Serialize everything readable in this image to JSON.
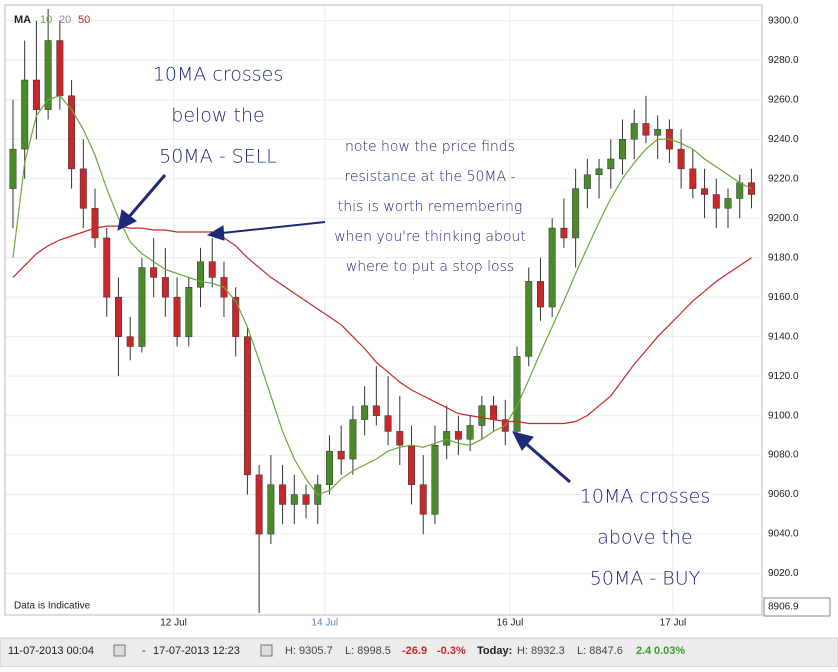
{
  "chart_data": {
    "type": "candlestick",
    "legend_title": "MA",
    "up_color": "#4a8a2a",
    "down_color": "#c8282a",
    "open": [
      9215,
      9235,
      9270,
      9255,
      9290,
      9262,
      9225,
      9205,
      9190,
      9160,
      9140,
      9135,
      9175,
      9170,
      9160,
      9140,
      9165,
      9178,
      9170,
      9160,
      9140,
      9070,
      9040,
      9065,
      9055,
      9060,
      9055,
      9065,
      9082,
      9078,
      9098,
      9105,
      9100,
      9092,
      9085,
      9065,
      9050,
      9085,
      9092,
      9088,
      9095,
      9105,
      9098,
      9092,
      9130,
      9168,
      9155,
      9195,
      9190,
      9215,
      9222,
      9225,
      9230,
      9240,
      9248,
      9242,
      9245,
      9235,
      9225,
      9215,
      9212,
      9205,
      9210,
      9218
    ],
    "high": [
      9260,
      9290,
      9300,
      9306,
      9300,
      9270,
      9240,
      9215,
      9195,
      9170,
      9150,
      9180,
      9190,
      9185,
      9170,
      9170,
      9185,
      9190,
      9178,
      9165,
      9145,
      9075,
      9080,
      9075,
      9070,
      9065,
      9070,
      9090,
      9095,
      9105,
      9115,
      9125,
      9120,
      9110,
      9095,
      9080,
      9095,
      9105,
      9100,
      9100,
      9110,
      9110,
      9108,
      9135,
      9175,
      9180,
      9200,
      9210,
      9225,
      9230,
      9230,
      9240,
      9250,
      9255,
      9262,
      9252,
      9250,
      9245,
      9235,
      9225,
      9220,
      9215,
      9222,
      9225
    ],
    "low": [
      9195,
      9220,
      9240,
      9250,
      9255,
      9215,
      9195,
      9185,
      9150,
      9120,
      9128,
      9132,
      9160,
      9150,
      9135,
      9135,
      9155,
      9165,
      9150,
      9130,
      9060,
      9000,
      9035,
      9045,
      9045,
      9048,
      9045,
      9060,
      9070,
      9070,
      9090,
      9095,
      9085,
      9075,
      9055,
      9040,
      9045,
      9078,
      9080,
      9082,
      9088,
      9092,
      9085,
      9088,
      9125,
      9148,
      9150,
      9185,
      9175,
      9205,
      9210,
      9215,
      9222,
      9230,
      9238,
      9230,
      9228,
      9215,
      9210,
      9200,
      9195,
      9195,
      9200,
      9205
    ],
    "close": [
      9235,
      9270,
      9255,
      9290,
      9262,
      9225,
      9205,
      9190,
      9160,
      9140,
      9135,
      9175,
      9170,
      9160,
      9140,
      9165,
      9178,
      9170,
      9160,
      9140,
      9070,
      9040,
      9065,
      9055,
      9060,
      9055,
      9065,
      9082,
      9078,
      9098,
      9105,
      9100,
      9092,
      9085,
      9065,
      9050,
      9085,
      9092,
      9088,
      9095,
      9105,
      9098,
      9092,
      9130,
      9168,
      9155,
      9195,
      9190,
      9215,
      9222,
      9225,
      9230,
      9240,
      9248,
      9242,
      9245,
      9235,
      9225,
      9215,
      9212,
      9205,
      9210,
      9218,
      9212
    ],
    "series": [
      {
        "name": "10",
        "color": "#6aa83a",
        "values": [
          9180,
          9228,
          9252,
          9260,
          9262,
          9255,
          9245,
          9232,
          9215,
          9200,
          9188,
          9182,
          9178,
          9174,
          9172,
          9170,
          9168,
          9167,
          9165,
          9158,
          9145,
          9128,
          9110,
          9092,
          9078,
          9068,
          9060,
          9062,
          9068,
          9072,
          9075,
          9078,
          9082,
          9084,
          9085,
          9084,
          9086,
          9088,
          9086,
          9085,
          9088,
          9092,
          9095,
          9105,
          9118,
          9132,
          9145,
          9158,
          9172,
          9185,
          9198,
          9210,
          9220,
          9228,
          9235,
          9240,
          9240,
          9238,
          9235,
          9230,
          9226,
          9222,
          9218,
          9215
        ]
      },
      {
        "name": "50",
        "color": "#c8282a",
        "values": [
          9170,
          9176,
          9182,
          9186,
          9189,
          9191,
          9193,
          9195,
          9196,
          9196,
          9195,
          9195,
          9194,
          9194,
          9193,
          9193,
          9193,
          9193,
          9190,
          9186,
          9180,
          9175,
          9170,
          9166,
          9162,
          9158,
          9154,
          9150,
          9146,
          9140,
          9134,
          9127,
          9122,
          9117,
          9113,
          9110,
          9107,
          9104,
          9101,
          9100,
          9099,
          9098,
          9097,
          9097,
          9096,
          9096,
          9096,
          9096,
          9097,
          9100,
          9105,
          9110,
          9118,
          9126,
          9133,
          9140,
          9146,
          9152,
          9158,
          9163,
          9168,
          9172,
          9176,
          9180
        ]
      }
    ],
    "hidden_series": {
      "name": "20",
      "color": "#8a8a8a"
    },
    "xlim": [
      -0.68,
      63.9
    ],
    "xticks": [
      {
        "value": 13.7,
        "label": "12 Jul"
      },
      {
        "value": 26.6,
        "label": "14 Jul"
      },
      {
        "value": 42.4,
        "label": "16 Jul"
      },
      {
        "value": 56.3,
        "label": "17 Jul"
      }
    ],
    "ylim": [
      8999,
      9308
    ],
    "yticks": [
      {
        "value": 9020,
        "label": "9020.0"
      },
      {
        "value": 9040,
        "label": "9040.0"
      },
      {
        "value": 9060,
        "label": "9060.0"
      },
      {
        "value": 9080,
        "label": "9080.0"
      },
      {
        "value": 9100,
        "label": "9100.0"
      },
      {
        "value": 9120,
        "label": "9120.0"
      },
      {
        "value": 9140,
        "label": "9140.0"
      },
      {
        "value": 9160,
        "label": "9160.0"
      },
      {
        "value": 9180,
        "label": "9180.0"
      },
      {
        "value": 9200,
        "label": "9200.0"
      },
      {
        "value": 9220,
        "label": "9220.0"
      },
      {
        "value": 9240,
        "label": "9240.0"
      },
      {
        "value": 9260,
        "label": "9260.0"
      },
      {
        "value": 9280,
        "label": "9280.0"
      },
      {
        "value": 9300,
        "label": "9300.0"
      }
    ],
    "grid": true,
    "last_price": 8906.9,
    "disclaimer": "Data is Indicative",
    "annotations": {
      "sell": [
        "10MA crosses",
        "below the",
        "50MA - SELL"
      ],
      "note": [
        "note how the price finds",
        "resistance at the 50MA -",
        "this is worth remembering",
        "when you're thinking about",
        "where to put a stop loss"
      ],
      "buy": [
        "10MA crosses",
        "above the",
        "50MA - BUY"
      ]
    }
  },
  "status_bar": {
    "start": "11-07-2013 00:04",
    "separator": "-",
    "end": "17-07-2013 12:23",
    "high": "H: 9305.7",
    "low": "L: 8998.5",
    "change": "-26.9",
    "change_pct": "-0.3%",
    "today_label": "Today:",
    "today_high": "H: 8932.3",
    "today_low": "L: 8847.6",
    "today_change": "2.4",
    "today_change_pct": "0.03%"
  }
}
